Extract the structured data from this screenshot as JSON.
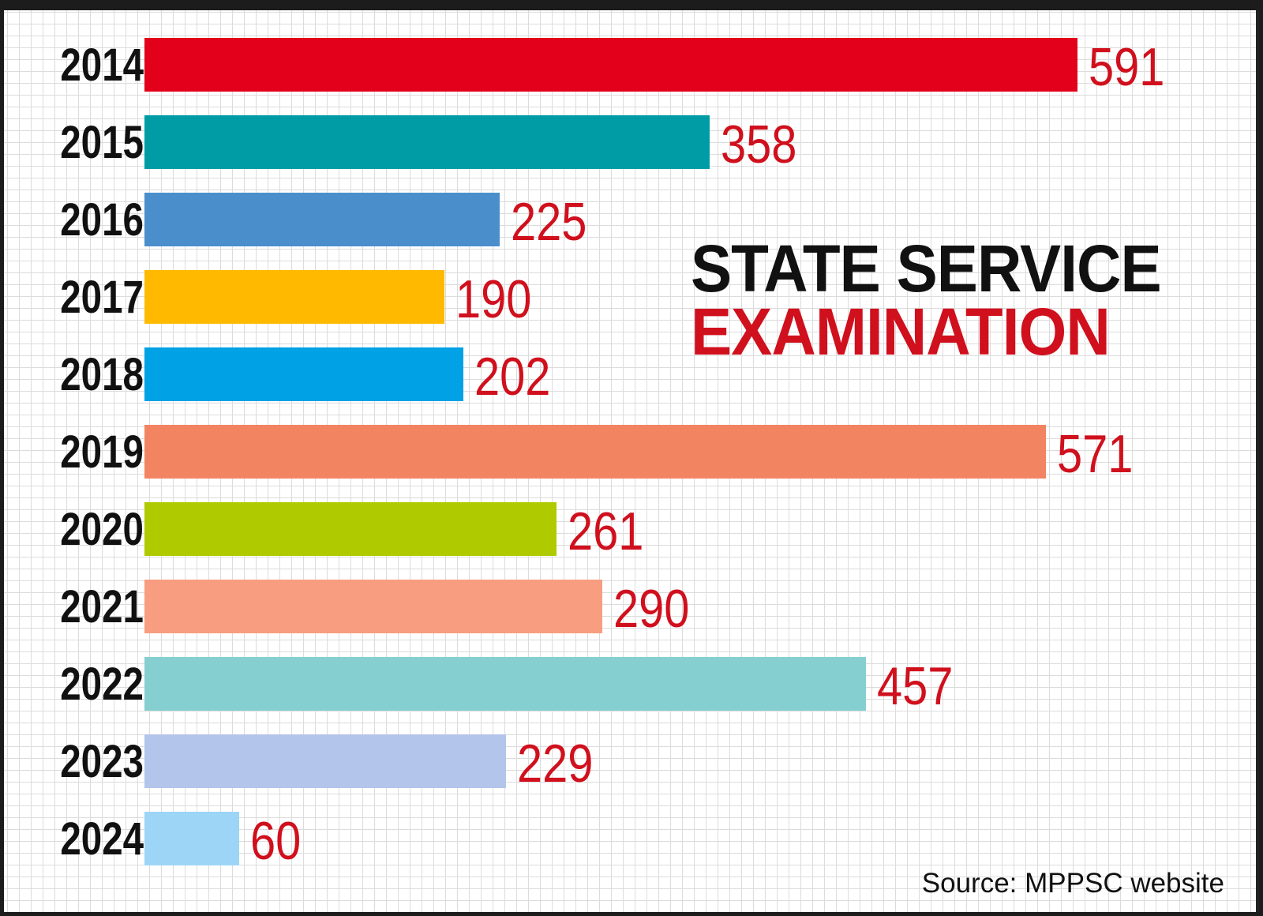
{
  "chart_data": {
    "type": "bar",
    "orientation": "horizontal",
    "title_line1": "STATE SERVICE",
    "title_line2": "EXAMINATION",
    "categories": [
      "2014",
      "2015",
      "2016",
      "2017",
      "2018",
      "2019",
      "2020",
      "2021",
      "2022",
      "2023",
      "2024"
    ],
    "values": [
      591,
      358,
      225,
      190,
      202,
      571,
      261,
      290,
      457,
      229,
      60
    ],
    "bar_colors": [
      "#e2001a",
      "#009ca5",
      "#4a8fcc",
      "#ffba00",
      "#00a1e5",
      "#f28462",
      "#afcb00",
      "#f89d7f",
      "#86cfd0",
      "#b3c5ea",
      "#9dd5f6"
    ],
    "value_label_color": "#d0101d",
    "grid": true,
    "source": "Source: MPPSC website"
  }
}
